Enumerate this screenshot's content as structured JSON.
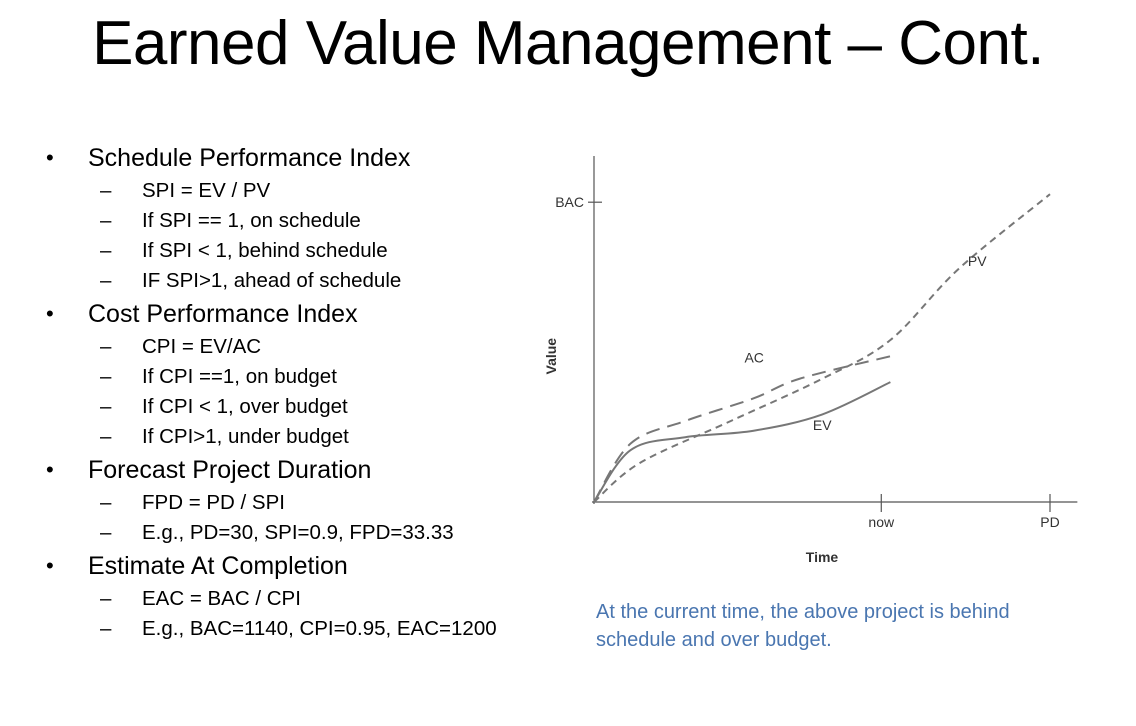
{
  "title": "Earned Value Management – Cont.",
  "sections": [
    {
      "heading": "Schedule Performance Index",
      "items": [
        "SPI = EV / PV",
        "If SPI == 1, on schedule",
        "If SPI < 1, behind schedule",
        "IF SPI>1, ahead of schedule"
      ]
    },
    {
      "heading": "Cost Performance Index",
      "items": [
        "CPI = EV/AC",
        "If CPI ==1, on budget",
        "If CPI < 1, over budget",
        "If CPI>1, under budget"
      ]
    },
    {
      "heading": "Forecast Project Duration",
      "items": [
        "FPD = PD / SPI",
        "E.g., PD=30, SPI=0.9, FPD=33.33"
      ]
    },
    {
      "heading": "Estimate At Completion",
      "items": [
        "EAC = BAC / CPI",
        "E.g., BAC=1140, CPI=0.95, EAC=1200"
      ]
    }
  ],
  "bullet_glyph": "•",
  "dash_glyph": "–",
  "chart_data": {
    "type": "line",
    "xlabel": "Time",
    "ylabel": "Value",
    "x_ticks": [
      "now",
      "PD"
    ],
    "y_ticks": [
      "BAC"
    ],
    "grid": false,
    "series": [
      {
        "name": "PV",
        "style": "dashed-short",
        "points": [
          [
            0,
            0
          ],
          [
            0.1,
            0.12
          ],
          [
            0.3,
            0.25
          ],
          [
            0.5,
            0.38
          ],
          [
            0.65,
            0.5
          ],
          [
            0.8,
            0.72
          ],
          [
            1.0,
            0.95
          ]
        ]
      },
      {
        "name": "AC",
        "style": "dashed-long",
        "points": [
          [
            0,
            0
          ],
          [
            0.08,
            0.18
          ],
          [
            0.2,
            0.25
          ],
          [
            0.35,
            0.32
          ],
          [
            0.45,
            0.38
          ],
          [
            0.65,
            0.45
          ]
        ]
      },
      {
        "name": "EV",
        "style": "solid",
        "points": [
          [
            0,
            0
          ],
          [
            0.08,
            0.16
          ],
          [
            0.2,
            0.2
          ],
          [
            0.35,
            0.22
          ],
          [
            0.5,
            0.27
          ],
          [
            0.65,
            0.37
          ]
        ]
      }
    ],
    "text_color": "#333333",
    "line_color": "#777777"
  },
  "caption": "At the current time, the above project is behind schedule and over budget.",
  "caption_color": "#4a76b0"
}
